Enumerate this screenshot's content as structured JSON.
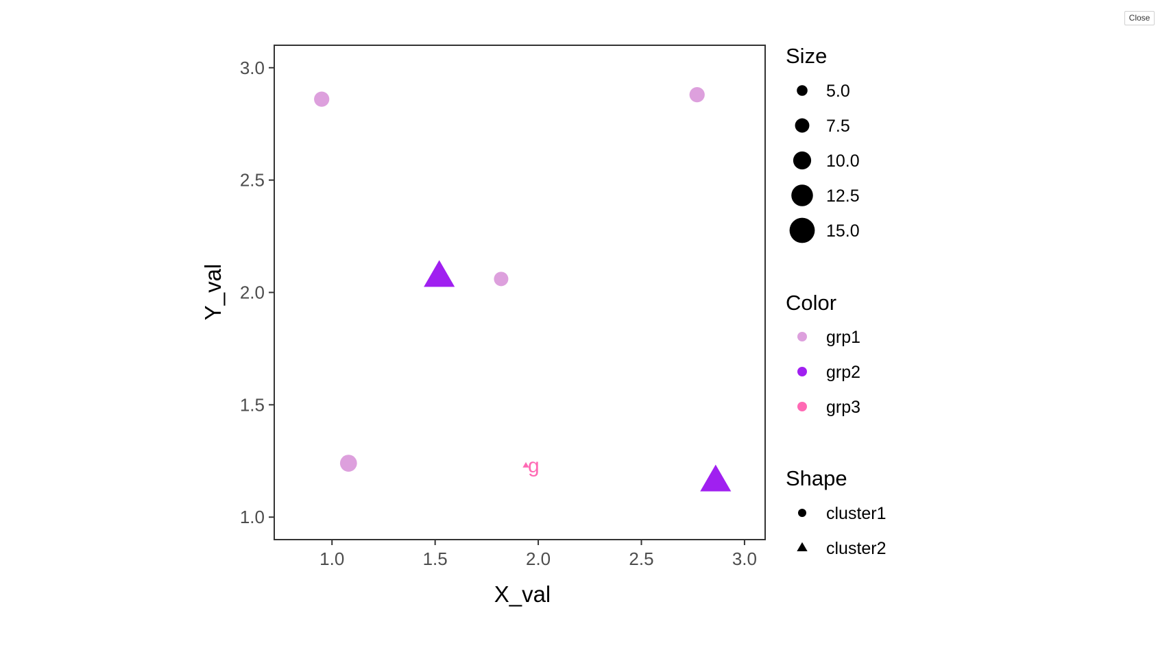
{
  "window": {
    "close_label": "Close"
  },
  "chart_data": {
    "type": "scatter",
    "xlabel": "X_val",
    "ylabel": "Y_val",
    "xlim": [
      0.72,
      3.1
    ],
    "ylim": [
      0.9,
      3.1
    ],
    "x_ticks": [
      "1.0",
      "1.5",
      "2.0",
      "2.5",
      "3.0"
    ],
    "y_ticks": [
      "1.0",
      "1.5",
      "2.0",
      "2.5",
      "3.0"
    ],
    "grid": false,
    "legend_position": "right",
    "colors": {
      "grp1": "#dda0dd",
      "grp2": "#a020f0",
      "grp3": "#ff69b4"
    },
    "points": [
      {
        "x": 0.95,
        "y": 2.86,
        "size": 7.5,
        "color": "grp1",
        "shape": "cluster1"
      },
      {
        "x": 2.77,
        "y": 2.88,
        "size": 7.5,
        "color": "grp1",
        "shape": "cluster1"
      },
      {
        "x": 1.52,
        "y": 2.07,
        "size": 15.0,
        "color": "grp2",
        "shape": "cluster2"
      },
      {
        "x": 1.82,
        "y": 2.06,
        "size": 7.0,
        "color": "grp1",
        "shape": "cluster1"
      },
      {
        "x": 1.08,
        "y": 1.24,
        "size": 8.5,
        "color": "grp1",
        "shape": "cluster1"
      },
      {
        "x": 1.94,
        "y": 1.23,
        "size": 2.0,
        "color": "grp3",
        "shape": "cluster2",
        "label": "g"
      },
      {
        "x": 2.86,
        "y": 1.16,
        "size": 15.0,
        "color": "grp2",
        "shape": "cluster2"
      }
    ],
    "legend": {
      "size": {
        "title": "Size",
        "entries": [
          "5.0",
          "7.5",
          "10.0",
          "12.5",
          "15.0"
        ],
        "values": [
          5.0,
          7.5,
          10.0,
          12.5,
          15.0
        ]
      },
      "color": {
        "title": "Color",
        "entries": [
          "grp1",
          "grp2",
          "grp3"
        ]
      },
      "shape": {
        "title": "Shape",
        "entries": [
          "cluster1",
          "cluster2"
        ]
      }
    }
  }
}
